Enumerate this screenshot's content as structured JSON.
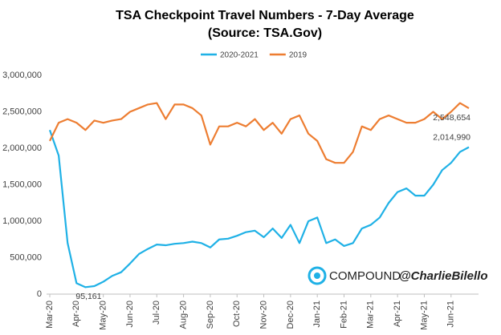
{
  "chart_data": {
    "type": "line",
    "title": "TSA Checkpoint Travel Numbers - 7-Day Average",
    "subtitle": "(Source: TSA.Gov)",
    "categories": [
      "Mar-20",
      null,
      null,
      "Apr-20",
      null,
      null,
      "May-20",
      null,
      null,
      "Jun-20",
      null,
      null,
      "Jul-20",
      null,
      null,
      "Aug-20",
      null,
      null,
      "Sep-20",
      null,
      null,
      "Oct-20",
      null,
      null,
      "Nov-20",
      null,
      null,
      "Dec-20",
      null,
      null,
      "Jan-21",
      null,
      null,
      "Feb-21",
      null,
      null,
      "Mar-21",
      null,
      null,
      "Apr-21",
      null,
      null,
      "May-21",
      null,
      null,
      "Jun-21",
      null,
      null
    ],
    "series": [
      {
        "name": "2020-2021",
        "color": "#1fb1e6",
        "values": [
          2250000,
          1900000,
          700000,
          150000,
          95161,
          110000,
          170000,
          250000,
          300000,
          420000,
          550000,
          620000,
          680000,
          670000,
          690000,
          700000,
          720000,
          700000,
          640000,
          750000,
          760000,
          800000,
          850000,
          870000,
          780000,
          900000,
          770000,
          950000,
          700000,
          1000000,
          1050000,
          700000,
          750000,
          660000,
          700000,
          900000,
          950000,
          1050000,
          1250000,
          1400000,
          1450000,
          1350000,
          1350000,
          1500000,
          1700000,
          1800000,
          1950000,
          2014990
        ],
        "value_labels": [
          null,
          null,
          null,
          null,
          "95,161",
          null,
          null,
          null,
          null,
          null,
          null,
          null,
          null,
          null,
          null,
          null,
          null,
          null,
          null,
          null,
          null,
          null,
          null,
          null,
          null,
          null,
          null,
          null,
          null,
          null,
          null,
          null,
          null,
          null,
          null,
          null,
          null,
          null,
          null,
          null,
          null,
          null,
          null,
          null,
          null,
          null,
          null,
          "2,014,990"
        ]
      },
      {
        "name": "2019",
        "color": "#ed7d31",
        "values": [
          2100000,
          2350000,
          2400000,
          2350000,
          2250000,
          2380000,
          2350000,
          2380000,
          2400000,
          2500000,
          2550000,
          2600000,
          2620000,
          2400000,
          2600000,
          2600000,
          2550000,
          2450000,
          2050000,
          2300000,
          2300000,
          2350000,
          2300000,
          2400000,
          2250000,
          2350000,
          2200000,
          2400000,
          2450000,
          2200000,
          2100000,
          1850000,
          1800000,
          1800000,
          1950000,
          2300000,
          2250000,
          2400000,
          2450000,
          2400000,
          2350000,
          2350000,
          2400000,
          2500000,
          2400000,
          2500000,
          2620000,
          2548654
        ],
        "value_labels": [
          null,
          null,
          null,
          null,
          null,
          null,
          null,
          null,
          null,
          null,
          null,
          null,
          null,
          null,
          null,
          null,
          null,
          null,
          null,
          null,
          null,
          null,
          null,
          null,
          null,
          null,
          null,
          null,
          null,
          null,
          null,
          null,
          null,
          null,
          null,
          null,
          null,
          null,
          null,
          null,
          null,
          null,
          null,
          null,
          null,
          null,
          null,
          "2,548,654"
        ]
      }
    ],
    "ylim": [
      0,
      3000000
    ],
    "yticks": [
      0,
      {
        "value": 500000,
        "label": "500,000"
      },
      {
        "value": 1000000,
        "label": "1,000,000"
      },
      {
        "value": 1500000,
        "label": "1,500,000"
      },
      {
        "value": 2000000,
        "label": "2,000,000"
      },
      {
        "value": 2500000,
        "label": "2,500,000"
      },
      {
        "value": 3000000,
        "label": "3,000,000"
      }
    ],
    "grid": false,
    "legend": "top",
    "watermark": [
      "COMPOUND",
      "@CharlieBilello"
    ]
  }
}
